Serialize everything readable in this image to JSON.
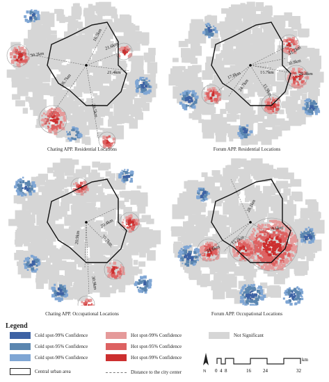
{
  "panels": [
    {
      "id": "chat-res",
      "caption": "Chating APP. Residential Locations",
      "distances": [
        "30.2km",
        "16.5km",
        "21.6km",
        "21.4km",
        "26.7km",
        "29.5km"
      ]
    },
    {
      "id": "forum-res",
      "caption": "Forum APP. Residential Locations",
      "distances": [
        "31.2km",
        "30.9km",
        "16.7km",
        "26.8km",
        "17.8km",
        "24.7km",
        "15.9km"
      ]
    },
    {
      "id": "chat-occ",
      "caption": "Chating APP. Occupational Locations",
      "distances": [
        "20.4km",
        "30.7km",
        "20.9km",
        "30.9km"
      ]
    },
    {
      "id": "forum-occ",
      "caption": "Forum APP. Occupational Locations",
      "distances": [
        "28.1km",
        "19.6km",
        "15.2km",
        "21.8km"
      ]
    }
  ],
  "legend": {
    "title": "Legend",
    "cold99": "Cold spot-99% Confidence",
    "cold95": "Cold spot-95% Confidence",
    "cold90": "Cold spot-90% Confidence",
    "hot99a": "Hot spot-99% Confidence",
    "hot95": "Hot spot-95% Confidence",
    "hot99b": "Hot spot-99% Confidence",
    "not_sig": "Not Significant",
    "central": "Central urban area",
    "distance": "Distance to the city center"
  },
  "scale": {
    "north": "N",
    "unit": "km",
    "ticks": [
      "0",
      "4",
      "8",
      "16",
      "24",
      "32"
    ]
  },
  "colors": {
    "cold99": "#3d62a4",
    "cold95": "#5b86b0",
    "cold90": "#7fa6d4",
    "hot_light": "#e59a9a",
    "hot_mid": "#dd6262",
    "hot_dark": "#cc2f2f",
    "not_sig": "#d6d6d6"
  }
}
